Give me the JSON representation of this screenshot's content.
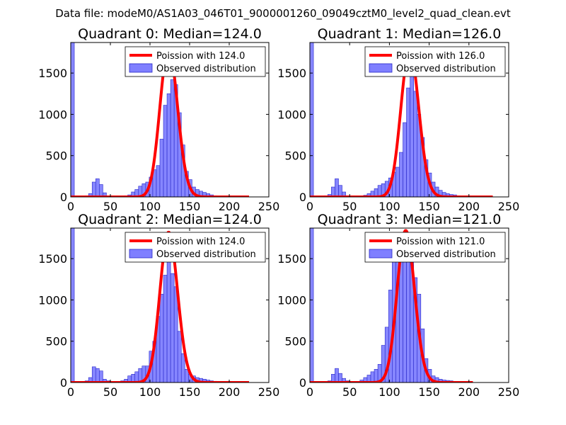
{
  "figure": {
    "suptitle": "Data file: modeM0/AS1A03_046T01_9000001260_09049cztM0_level2_quad_clean.evt",
    "colors": {
      "poisson_line": "#ff0000",
      "hist_fill": "#7f7fff",
      "hist_edge": "#2828c8",
      "axes": "#000000",
      "background": "#ffffff"
    }
  },
  "chart_data": [
    {
      "type": "bar",
      "title": "Quadrant 0: Median=124.0",
      "median": 124.0,
      "xlim": [
        0,
        250
      ],
      "ylim": [
        0,
        1870
      ],
      "xticks": [
        0,
        50,
        100,
        150,
        200,
        250
      ],
      "yticks": [
        0,
        500,
        1000,
        1500
      ],
      "legend_position": "top-right",
      "legend": [
        "Poission with 124.0",
        "Observed distribution"
      ],
      "series": [
        {
          "name": "Observed distribution",
          "bin_width": 4.5,
          "bins_start": [
            0,
            18,
            22.5,
            27,
            31.5,
            36,
            40.5,
            45,
            58.5,
            63,
            67.5,
            72,
            76.5,
            81,
            85.5,
            90,
            94.5,
            99,
            103.5,
            108,
            112.5,
            117,
            121.5,
            126,
            130.5,
            135,
            139.5,
            144,
            148.5,
            153,
            157.5,
            162,
            166.5,
            171,
            175.5,
            180,
            184.5,
            189,
            193.5,
            198,
            202.5,
            207,
            211.5,
            216,
            220.5
          ],
          "counts": [
            1870,
            15,
            40,
            180,
            220,
            150,
            50,
            10,
            5,
            10,
            15,
            25,
            60,
            90,
            130,
            160,
            180,
            240,
            330,
            380,
            700,
            1110,
            1250,
            1420,
            1360,
            1020,
            630,
            310,
            210,
            120,
            90,
            70,
            55,
            40,
            25,
            15,
            10,
            8,
            5,
            4,
            3,
            2,
            2,
            1,
            1
          ]
        },
        {
          "name": "Poission with 124.0",
          "lambda": 124.0,
          "peak": 1800,
          "x_range": [
            0,
            225
          ]
        }
      ]
    },
    {
      "type": "bar",
      "title": "Quadrant 1: Median=126.0",
      "median": 126.0,
      "xlim": [
        0,
        250
      ],
      "ylim": [
        0,
        1870
      ],
      "xticks": [
        0,
        50,
        100,
        150,
        200,
        250
      ],
      "yticks": [
        0,
        500,
        1000,
        1500
      ],
      "legend_position": "top-right",
      "legend": [
        "Poission with 126.0",
        "Observed distribution"
      ],
      "series": [
        {
          "name": "Observed distribution",
          "bin_width": 4.5,
          "bins_start": [
            0,
            18,
            22.5,
            27,
            31.5,
            36,
            40.5,
            45,
            63,
            67.5,
            72,
            76.5,
            81,
            85.5,
            90,
            94.5,
            99,
            103.5,
            108,
            112.5,
            117,
            121.5,
            126,
            130.5,
            135,
            139.5,
            144,
            148.5,
            153,
            157.5,
            162,
            166.5,
            171,
            175.5,
            180,
            184.5,
            189,
            193.5,
            198,
            202.5,
            207,
            211.5,
            216,
            220.5,
            225
          ],
          "counts": [
            1870,
            15,
            30,
            120,
            220,
            140,
            60,
            15,
            10,
            20,
            40,
            70,
            100,
            140,
            160,
            190,
            230,
            300,
            360,
            540,
            900,
            1320,
            1500,
            1280,
            1000,
            720,
            450,
            290,
            180,
            120,
            80,
            55,
            40,
            30,
            25,
            15,
            10,
            7,
            5,
            4,
            3,
            2,
            2,
            1,
            1
          ]
        },
        {
          "name": "Poission with 126.0",
          "lambda": 126.0,
          "peak": 1780,
          "x_range": [
            0,
            230
          ]
        }
      ]
    },
    {
      "type": "bar",
      "title": "Quadrant 2: Median=124.0",
      "median": 124.0,
      "xlim": [
        0,
        250
      ],
      "ylim": [
        0,
        1870
      ],
      "xticks": [
        0,
        50,
        100,
        150,
        200,
        250
      ],
      "yticks": [
        0,
        500,
        1000,
        1500
      ],
      "legend_position": "top-right",
      "legend": [
        "Poission with 124.0",
        "Observed distribution"
      ],
      "series": [
        {
          "name": "Observed distribution",
          "bin_width": 4.5,
          "bins_start": [
            0,
            18,
            22.5,
            27,
            31.5,
            36,
            40.5,
            45,
            54,
            58.5,
            63,
            67.5,
            72,
            76.5,
            81,
            85.5,
            90,
            94.5,
            99,
            103.5,
            108,
            112.5,
            117,
            121.5,
            126,
            130.5,
            135,
            139.5,
            144,
            148.5,
            153,
            157.5,
            162,
            166.5,
            171,
            175.5,
            180,
            184.5,
            189,
            193.5,
            198,
            202.5,
            207,
            211.5,
            216
          ],
          "counts": [
            1870,
            20,
            60,
            190,
            170,
            140,
            40,
            20,
            10,
            10,
            20,
            40,
            80,
            100,
            130,
            170,
            200,
            200,
            380,
            500,
            800,
            1070,
            1300,
            1600,
            1320,
            1160,
            620,
            350,
            160,
            100,
            80,
            60,
            50,
            40,
            30,
            20,
            15,
            10,
            8,
            6,
            5,
            4,
            3,
            2,
            1
          ]
        },
        {
          "name": "Poission with 124.0",
          "lambda": 124.0,
          "peak": 1820,
          "x_range": [
            0,
            225
          ]
        }
      ]
    },
    {
      "type": "bar",
      "title": "Quadrant 3: Median=121.0",
      "median": 121.0,
      "xlim": [
        0,
        250
      ],
      "ylim": [
        0,
        1870
      ],
      "xticks": [
        0,
        50,
        100,
        150,
        200,
        250
      ],
      "yticks": [
        0,
        500,
        1000,
        1500
      ],
      "legend_position": "top-right",
      "legend": [
        "Poission with 121.0",
        "Observed distribution"
      ],
      "series": [
        {
          "name": "Observed distribution",
          "bin_width": 4.5,
          "bins_start": [
            0,
            22.5,
            27,
            31.5,
            36,
            40.5,
            45,
            58.5,
            63,
            67.5,
            72,
            76.5,
            81,
            85.5,
            90,
            94.5,
            99,
            103.5,
            108,
            112.5,
            117,
            121.5,
            126,
            130.5,
            135,
            139.5,
            144,
            148.5,
            153,
            157.5,
            162,
            166.5,
            171,
            175.5,
            180,
            184.5,
            189,
            193.5,
            198,
            202.5,
            207
          ],
          "counts": [
            1870,
            20,
            100,
            170,
            110,
            50,
            20,
            10,
            30,
            60,
            90,
            130,
            160,
            220,
            450,
            670,
            1120,
            1520,
            1570,
            1570,
            1820,
            1640,
            1600,
            1270,
            1070,
            650,
            290,
            160,
            80,
            60,
            40,
            30,
            25,
            20,
            12,
            8,
            5,
            3,
            2,
            1,
            1
          ]
        },
        {
          "name": "Poission with 121.0",
          "lambda": 121.0,
          "peak": 1840,
          "x_range": [
            0,
            205
          ]
        }
      ]
    }
  ]
}
